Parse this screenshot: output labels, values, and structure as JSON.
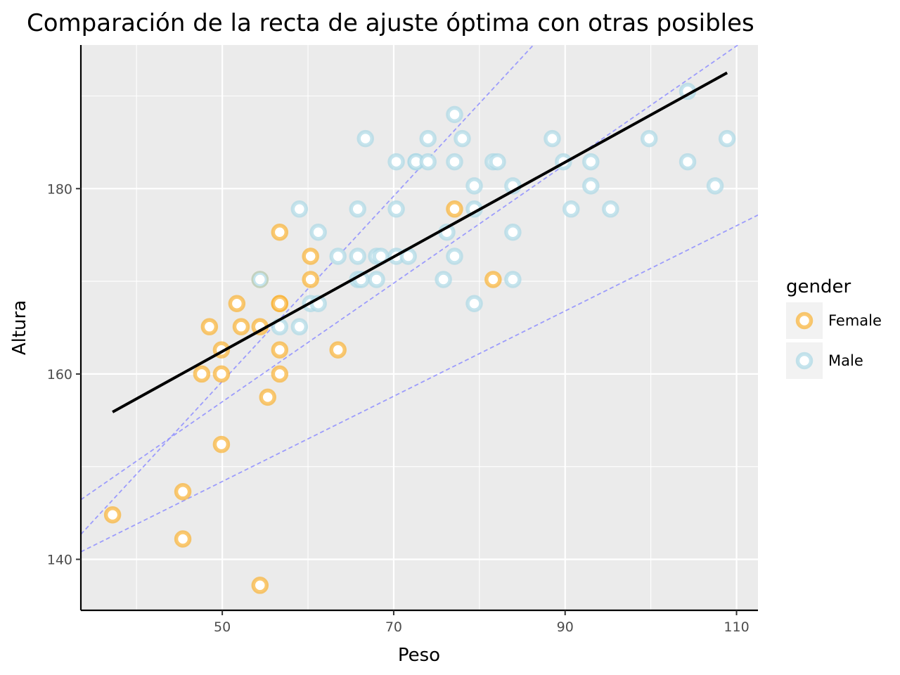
{
  "chart_data": {
    "type": "scatter",
    "title": "Comparación de la recta de ajuste óptima con otras posibles",
    "xlabel": "Peso",
    "ylabel": "Altura",
    "xlim": [
      33.5,
      112.5
    ],
    "ylim": [
      134.5,
      195.5
    ],
    "x_ticks": [
      50,
      70,
      90,
      110
    ],
    "y_ticks": [
      140,
      160,
      180
    ],
    "x_tick_labels": [
      "50",
      "70",
      "90",
      "110"
    ],
    "y_tick_labels": [
      "140",
      "160",
      "180"
    ],
    "grid": true,
    "legend": {
      "title": "gender",
      "position": "right"
    },
    "series": [
      {
        "name": "Female",
        "color": "#f9b233",
        "points": [
          [
            37.2,
            144.8
          ],
          [
            45.4,
            147.3
          ],
          [
            45.4,
            142.2
          ],
          [
            47.6,
            160.0
          ],
          [
            48.5,
            165.1
          ],
          [
            49.9,
            160.0
          ],
          [
            49.9,
            162.6
          ],
          [
            49.9,
            152.4
          ],
          [
            51.7,
            167.6
          ],
          [
            52.2,
            165.1
          ],
          [
            54.4,
            170.2
          ],
          [
            54.4,
            165.1
          ],
          [
            54.4,
            137.2
          ],
          [
            55.3,
            157.5
          ],
          [
            56.7,
            175.3
          ],
          [
            56.7,
            167.6
          ],
          [
            56.7,
            167.6
          ],
          [
            56.7,
            162.6
          ],
          [
            56.7,
            160.0
          ],
          [
            60.3,
            172.7
          ],
          [
            60.3,
            170.2
          ],
          [
            63.5,
            162.6
          ],
          [
            77.1,
            177.8
          ],
          [
            81.6,
            170.2
          ]
        ]
      },
      {
        "name": "Male",
        "color": "#add8e6",
        "points": [
          [
            54.4,
            170.2
          ],
          [
            56.7,
            165.1
          ],
          [
            59.0,
            177.8
          ],
          [
            59.0,
            165.1
          ],
          [
            60.3,
            167.6
          ],
          [
            61.2,
            175.3
          ],
          [
            61.2,
            167.6
          ],
          [
            63.5,
            172.7
          ],
          [
            65.8,
            177.8
          ],
          [
            65.8,
            172.7
          ],
          [
            65.8,
            170.2
          ],
          [
            66.2,
            170.2
          ],
          [
            66.7,
            185.4
          ],
          [
            68.0,
            172.7
          ],
          [
            68.0,
            170.2
          ],
          [
            68.5,
            172.7
          ],
          [
            70.3,
            182.9
          ],
          [
            70.3,
            177.8
          ],
          [
            70.3,
            172.7
          ],
          [
            71.7,
            172.7
          ],
          [
            72.6,
            182.9
          ],
          [
            72.6,
            182.9
          ],
          [
            74.0,
            185.4
          ],
          [
            74.0,
            182.9
          ],
          [
            75.8,
            170.2
          ],
          [
            76.2,
            175.3
          ],
          [
            77.1,
            188.0
          ],
          [
            77.1,
            182.9
          ],
          [
            77.1,
            172.7
          ],
          [
            78.0,
            185.4
          ],
          [
            79.4,
            180.3
          ],
          [
            79.4,
            177.8
          ],
          [
            79.4,
            167.6
          ],
          [
            81.6,
            182.9
          ],
          [
            82.1,
            182.9
          ],
          [
            83.9,
            180.3
          ],
          [
            83.9,
            175.3
          ],
          [
            83.9,
            170.2
          ],
          [
            88.5,
            185.4
          ],
          [
            89.8,
            182.9
          ],
          [
            90.7,
            177.8
          ],
          [
            93.0,
            182.9
          ],
          [
            93.0,
            180.3
          ],
          [
            95.3,
            177.8
          ],
          [
            99.8,
            185.4
          ],
          [
            104.3,
            190.5
          ],
          [
            104.3,
            182.9
          ],
          [
            107.5,
            180.3
          ],
          [
            108.9,
            185.4
          ]
        ]
      }
    ],
    "fit_line": {
      "color": "#000000",
      "x": [
        37.2,
        108.9
      ],
      "y": [
        155.9,
        192.5
      ]
    },
    "reference_lines": {
      "color": "#8f8fff",
      "style": "dashed",
      "lines": [
        {
          "intercept": 125.0,
          "slope": 0.64
        },
        {
          "intercept": 109.2,
          "slope": 1.0
        },
        {
          "intercept": 125.4,
          "slope": 0.46
        }
      ]
    }
  }
}
